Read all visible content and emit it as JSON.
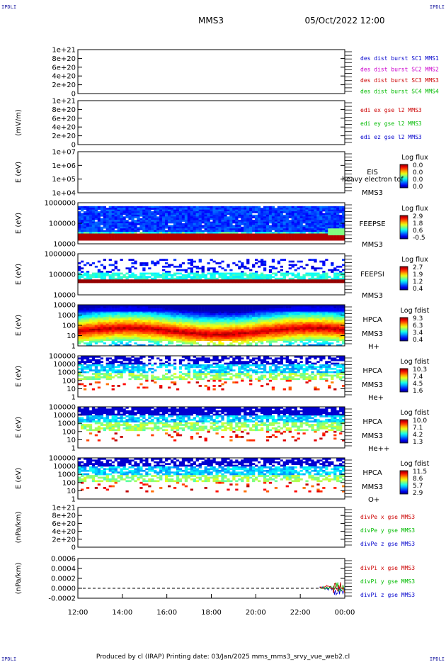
{
  "corners": {
    "tl": "IPDLI",
    "tr": "IPDLI",
    "bl": "IPDLI",
    "br": "IPDLI"
  },
  "header": {
    "spacecraft": "MMS3",
    "datetime": "05/Oct/2022 12:00"
  },
  "footer": {
    "text": "Produced by cl (IRAP)   Printing date: 03/Jan/2025   mms_mms3_srvy_vue_web2.cl"
  },
  "x_axis": {
    "ticks": [
      "12:00",
      "14:00",
      "16:00",
      "18:00",
      "20:00",
      "22:00",
      "00:00"
    ]
  },
  "colors": {
    "red": "#cc0000",
    "green": "#00bb00",
    "blue": "#0000cc",
    "magenta": "#cc00cc"
  },
  "chart_data": [
    {
      "type": "line",
      "id": "p1",
      "ylabel": "",
      "yticks": [
        "1e+21",
        "8e+20",
        "6e+20",
        "4e+20",
        "2e+20",
        "0"
      ],
      "legend": [
        {
          "text": "des dist burst SC1 MMS1",
          "color": "#0000cc"
        },
        {
          "text": "des dist burst SC2 MMS2",
          "color": "#cc00cc"
        },
        {
          "text": "des dist burst SC3 MMS3",
          "color": "#cc0000"
        },
        {
          "text": "des dist burst SC4 MMS4",
          "color": "#00bb00"
        }
      ]
    },
    {
      "type": "line",
      "id": "p2",
      "ylabel": "(mV/m)",
      "yticks": [
        "1e+21",
        "8e+20",
        "6e+20",
        "4e+20",
        "2e+20",
        "0"
      ],
      "legend": [
        {
          "text": "edi ex gse l2 MMS3",
          "color": "#cc0000"
        },
        {
          "text": "edi ey gse l2 MMS3",
          "color": "#00bb00"
        },
        {
          "text": "edi ez gse l2 MMS3",
          "color": "#0000cc"
        }
      ]
    },
    {
      "type": "heatmap",
      "id": "p3",
      "ylabel": "E (eV)",
      "yticks": [
        "1e+07",
        "1e+06",
        "1e+05",
        "1e+04"
      ],
      "instrument": [
        "EIS",
        "MMS3"
      ],
      "overlay": "heavy electron tof",
      "cb_label": "Log flux",
      "cb_values": [
        "0.0",
        "0.0",
        "0.0",
        "0.0"
      ]
    },
    {
      "type": "heatmap",
      "id": "p4",
      "ylabel": "E (eV)",
      "yticks": [
        "1000000",
        "100000",
        "10000"
      ],
      "instrument": [
        "FEEPSE",
        "MMS3"
      ],
      "cb_label": "Log flux",
      "cb_values": [
        "2.9",
        "1.8",
        "0.6",
        "-0.5"
      ]
    },
    {
      "type": "heatmap",
      "id": "p5",
      "ylabel": "E (eV)",
      "yticks": [
        "1000000",
        "100000",
        "10000"
      ],
      "instrument": [
        "FEEPSI",
        "MMS3"
      ],
      "cb_label": "Log flux",
      "cb_values": [
        "2.7",
        "1.9",
        "1.2",
        "0.4"
      ]
    },
    {
      "type": "heatmap",
      "id": "p6",
      "ylabel": "E (eV)",
      "yticks": [
        "10000",
        "1000",
        "100",
        "10",
        "1"
      ],
      "instrument": [
        "HPCA",
        "MMS3",
        "H+"
      ],
      "cb_label": "Log fdist",
      "cb_values": [
        "9.3",
        "6.3",
        "3.4",
        "0.4"
      ]
    },
    {
      "type": "heatmap",
      "id": "p7",
      "ylabel": "E (eV)",
      "yticks": [
        "100000",
        "10000",
        "1000",
        "100",
        "10",
        "1"
      ],
      "instrument": [
        "HPCA",
        "MMS3",
        "He+"
      ],
      "cb_label": "Log fdist",
      "cb_values": [
        "10.3",
        "7.4",
        "4.5",
        "1.6"
      ]
    },
    {
      "type": "heatmap",
      "id": "p8",
      "ylabel": "E (eV)",
      "yticks": [
        "100000",
        "10000",
        "1000",
        "100",
        "10",
        "1"
      ],
      "instrument": [
        "HPCA",
        "MMS3",
        "He++"
      ],
      "cb_label": "Log fdist",
      "cb_values": [
        "10.0",
        "7.1",
        "4.2",
        "1.3"
      ]
    },
    {
      "type": "heatmap",
      "id": "p9",
      "ylabel": "E (eV)",
      "yticks": [
        "100000",
        "10000",
        "1000",
        "100",
        "10",
        "1"
      ],
      "instrument": [
        "HPCA",
        "MMS3",
        "O+"
      ],
      "cb_label": "Log fdist",
      "cb_values": [
        "11.5",
        "8.6",
        "5.7",
        "2.9"
      ]
    },
    {
      "type": "line",
      "id": "p10",
      "ylabel": "(nPa/km)",
      "yticks": [
        "1e+21",
        "8e+20",
        "6e+20",
        "4e+20",
        "2e+20",
        "0"
      ],
      "legend": [
        {
          "text": "divPe x gse MMS3",
          "color": "#cc0000"
        },
        {
          "text": "divPe y gse MMS3",
          "color": "#00bb00"
        },
        {
          "text": "divPe z gse MMS3",
          "color": "#0000cc"
        }
      ]
    },
    {
      "type": "line",
      "id": "p11",
      "ylabel": "(nPa/km)",
      "yticks": [
        "0.0006",
        "0.0004",
        "0.0002",
        "0.0000",
        "-0.0002"
      ],
      "legend": [
        {
          "text": "divPi x gse MMS3",
          "color": "#cc0000"
        },
        {
          "text": "divPi y gse MMS3",
          "color": "#00bb00"
        },
        {
          "text": "divPi z gse MMS3",
          "color": "#0000cc"
        }
      ]
    }
  ]
}
